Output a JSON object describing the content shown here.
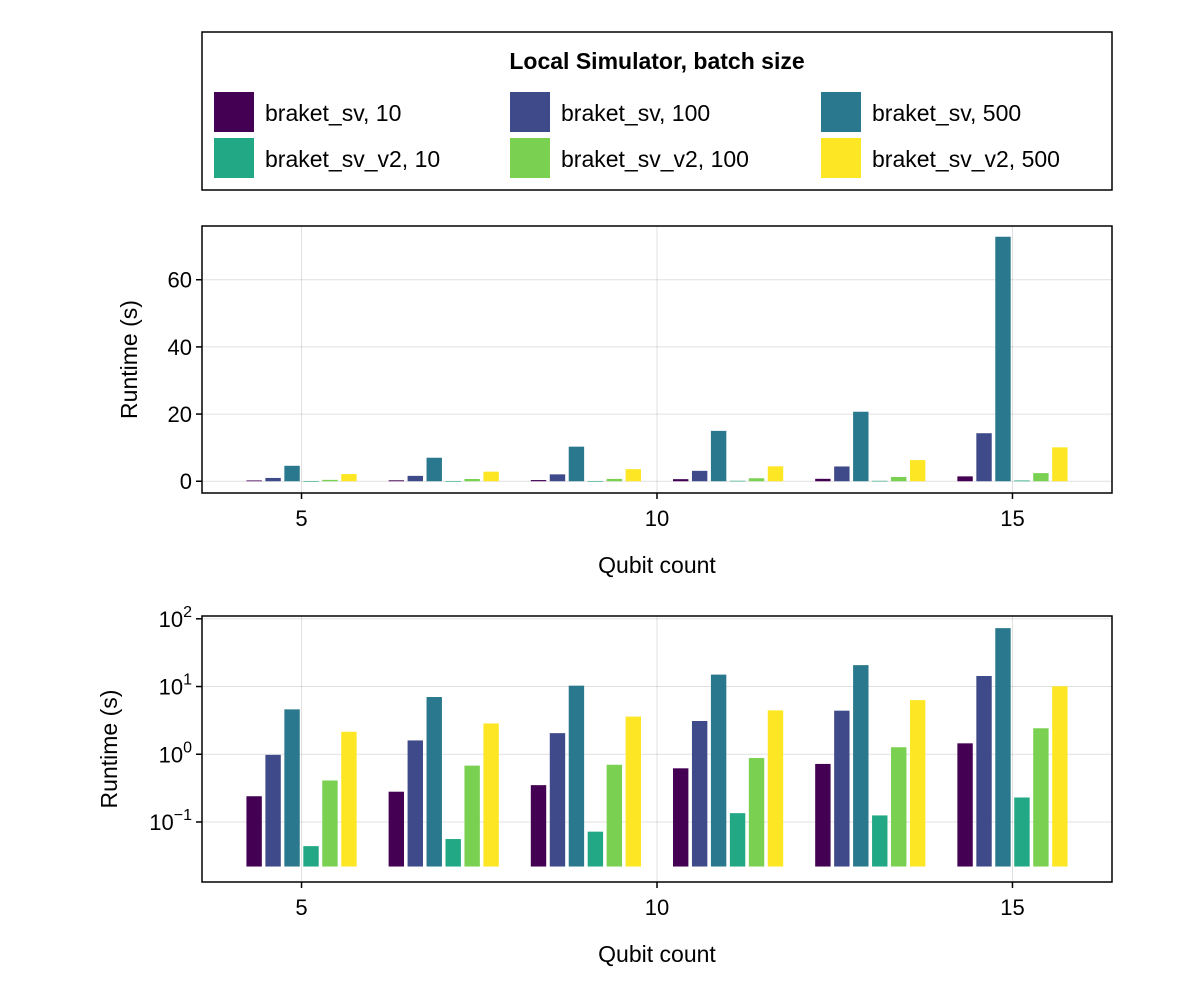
{
  "legend": {
    "title": "Local Simulator, batch size"
  },
  "colors": [
    "#440154",
    "#3e4a89",
    "#2a788e",
    "#22a884",
    "#7ad151",
    "#fde725"
  ],
  "chart_data": [
    {
      "type": "bar",
      "scale": "linear",
      "xlabel": "Qubit count",
      "ylabel": "Runtime (s)",
      "x": [
        5,
        7,
        9,
        11,
        13,
        15
      ],
      "xticks": [
        5,
        10,
        15
      ],
      "xlim": [
        3.6,
        16.4
      ],
      "ylim": [
        -3.5,
        76
      ],
      "yticks": [
        0,
        20,
        40,
        60
      ],
      "yticklabels": [
        "0",
        "20",
        "40",
        "60"
      ],
      "grid": true,
      "legend": "top (separate panel)",
      "series": [
        {
          "name": "braket_sv, 10",
          "values": [
            0.24,
            0.28,
            0.35,
            0.62,
            0.72,
            1.45
          ]
        },
        {
          "name": "braket_sv, 100",
          "values": [
            0.98,
            1.6,
            2.05,
            3.1,
            4.4,
            14.3
          ]
        },
        {
          "name": "braket_sv, 500",
          "values": [
            4.6,
            7.0,
            10.3,
            15.0,
            20.7,
            72.8
          ]
        },
        {
          "name": "braket_sv_v2, 10",
          "values": [
            0.044,
            0.056,
            0.072,
            0.135,
            0.125,
            0.23
          ]
        },
        {
          "name": "braket_sv_v2, 100",
          "values": [
            0.41,
            0.68,
            0.7,
            0.88,
            1.27,
            2.42
          ]
        },
        {
          "name": "braket_sv_v2, 500",
          "values": [
            2.15,
            2.85,
            3.6,
            4.45,
            6.3,
            10.1
          ]
        }
      ]
    },
    {
      "type": "bar",
      "scale": "log10",
      "xlabel": "Qubit count",
      "ylabel": "Runtime (s)",
      "x": [
        5,
        7,
        9,
        11,
        13,
        15
      ],
      "xticks": [
        5,
        10,
        15
      ],
      "xlim": [
        3.6,
        16.4
      ],
      "ylim": [
        0.013,
        110
      ],
      "bar_base": 0.022,
      "yticks": [
        0.1,
        1,
        10,
        100
      ],
      "yticklabels": [
        {
          "base": "10",
          "exp": "−1"
        },
        {
          "base": "10",
          "exp": "0"
        },
        {
          "base": "10",
          "exp": "1"
        },
        {
          "base": "10",
          "exp": "2"
        }
      ],
      "grid": true,
      "series": [
        {
          "name": "braket_sv, 10",
          "values": [
            0.24,
            0.28,
            0.35,
            0.62,
            0.72,
            1.45
          ]
        },
        {
          "name": "braket_sv, 100",
          "values": [
            0.98,
            1.6,
            2.05,
            3.1,
            4.4,
            14.3
          ]
        },
        {
          "name": "braket_sv, 500",
          "values": [
            4.6,
            7.0,
            10.3,
            15.0,
            20.7,
            72.8
          ]
        },
        {
          "name": "braket_sv_v2, 10",
          "values": [
            0.044,
            0.056,
            0.072,
            0.135,
            0.125,
            0.23
          ]
        },
        {
          "name": "braket_sv_v2, 100",
          "values": [
            0.41,
            0.68,
            0.7,
            0.88,
            1.27,
            2.42
          ]
        },
        {
          "name": "braket_sv_v2, 500",
          "values": [
            2.15,
            2.85,
            3.6,
            4.45,
            6.3,
            10.1
          ]
        }
      ]
    }
  ]
}
